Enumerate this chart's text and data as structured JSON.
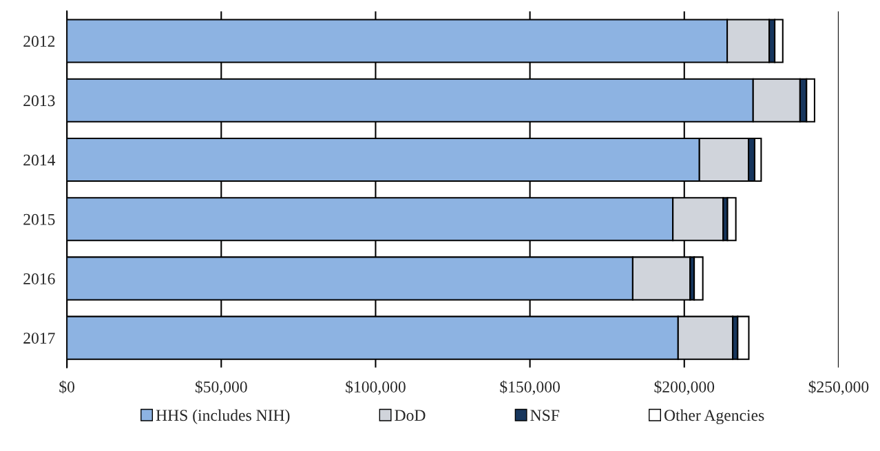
{
  "chart_data": {
    "type": "bar",
    "orientation": "horizontal",
    "stacked": true,
    "categories": [
      "2012",
      "2013",
      "2014",
      "2015",
      "2016",
      "2017"
    ],
    "series": [
      {
        "name": "HHS (includes NIH)",
        "color": "#8db3e2",
        "values": [
          213900,
          222300,
          204900,
          196300,
          183300,
          198000
        ]
      },
      {
        "name": "DoD",
        "color": "#d0d4db",
        "values": [
          13600,
          15200,
          15900,
          16300,
          18600,
          17700
        ]
      },
      {
        "name": "NSF",
        "color": "#17365d",
        "values": [
          1800,
          2100,
          2000,
          1400,
          1300,
          1600
        ]
      },
      {
        "name": "Other Agencies",
        "color": "#ffffff",
        "values": [
          2600,
          2600,
          2100,
          2700,
          2800,
          3600
        ]
      }
    ],
    "xlim": [
      0,
      250000
    ],
    "xticks": [
      {
        "value": 0,
        "label": "$0"
      },
      {
        "value": 50000,
        "label": "$50,000"
      },
      {
        "value": 100000,
        "label": "$100,000"
      },
      {
        "value": 150000,
        "label": "$150,000"
      },
      {
        "value": 200000,
        "label": "$200,000"
      },
      {
        "value": 250000,
        "label": "$250,000"
      }
    ],
    "grid": "x",
    "legend": "bottom"
  }
}
